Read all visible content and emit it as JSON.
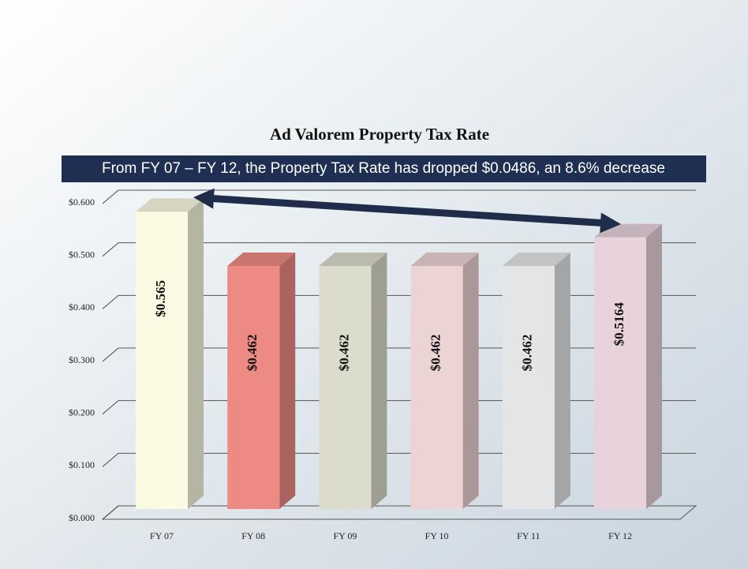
{
  "chart_data": {
    "type": "bar3d",
    "title": "Ad Valorem Property Tax Rate",
    "annotation": "From FY 07 – FY 12, the Property Tax Rate has dropped $0.0486, an 8.6% decrease",
    "categories": [
      "FY 07",
      "FY 08",
      "FY 09",
      "FY 10",
      "FY 11",
      "FY 12"
    ],
    "values": [
      0.565,
      0.462,
      0.462,
      0.462,
      0.462,
      0.5164
    ],
    "value_labels": [
      "$0.565",
      "$0.462",
      "$0.462",
      "$0.462",
      "$0.462",
      "$0.5164"
    ],
    "colors": [
      "#fbfbe4",
      "#ee8a84",
      "#dcdccc",
      "#ecd3d4",
      "#e3e5e6",
      "#e8d2dc"
    ],
    "ylim": [
      0,
      0.6
    ],
    "yticks": [
      {
        "value": 0,
        "label": "$0.000"
      },
      {
        "value": 0.1,
        "label": "$0.100"
      },
      {
        "value": 0.2,
        "label": "$0.200"
      },
      {
        "value": 0.3,
        "label": "$0.300"
      },
      {
        "value": 0.4,
        "label": "$0.400"
      },
      {
        "value": 0.5,
        "label": "$0.500"
      },
      {
        "value": 0.6,
        "label": "$0.600"
      }
    ],
    "grid": true
  }
}
